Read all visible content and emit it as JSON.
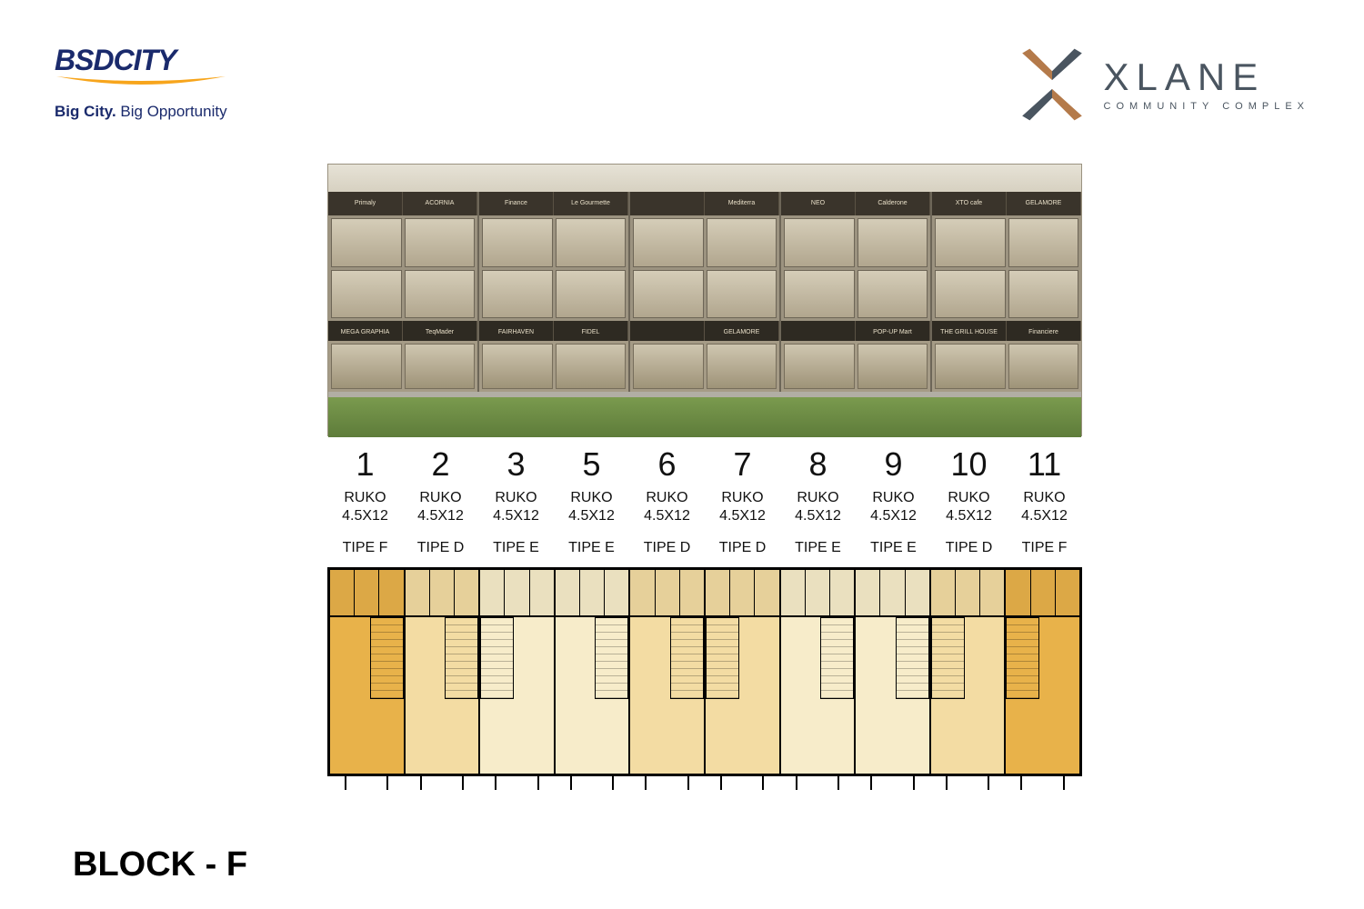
{
  "logo_left": {
    "brand_a": "BSD",
    "brand_b": "CITY",
    "tag_bold": "Big City.",
    "tag_rest": " Big Opportunity",
    "swoosh_color": "#f7a51c",
    "text_color": "#1a2a6c"
  },
  "logo_right": {
    "title": "XLANE",
    "subtitle": "COMMUNITY COMPLEX",
    "x_color_a": "#b47a4a",
    "x_color_b": "#4a5560"
  },
  "render": {
    "blocks": [
      {
        "upper": [
          "Primaly",
          "ACORNIA"
        ],
        "lower": [
          "MEGA GRAPHIA",
          "TeqMader"
        ]
      },
      {
        "upper": [
          "Finance",
          "Le Gourmette"
        ],
        "lower": [
          "FAIRHAVEN",
          "FIDEL"
        ]
      },
      {
        "upper": [
          "",
          "Mediterra"
        ],
        "lower": [
          "",
          "GELAMORE"
        ]
      },
      {
        "upper": [
          "NEO",
          "Calderone"
        ],
        "lower": [
          "",
          "POP-UP Mart"
        ]
      },
      {
        "upper": [
          "XTO cafe",
          "GELAMORE"
        ],
        "lower": [
          "THE GRILL HOUSE",
          "Financiere"
        ]
      }
    ]
  },
  "units": [
    {
      "num": "1",
      "label": "RUKO",
      "size": "4.5X12",
      "tipe": "TIPE F",
      "shade": "dark",
      "stairs": "right"
    },
    {
      "num": "2",
      "label": "RUKO",
      "size": "4.5X12",
      "tipe": "TIPE D",
      "shade": "mid",
      "stairs": "right"
    },
    {
      "num": "3",
      "label": "RUKO",
      "size": "4.5X12",
      "tipe": "TIPE E",
      "shade": "light",
      "stairs": "left"
    },
    {
      "num": "5",
      "label": "RUKO",
      "size": "4.5X12",
      "tipe": "TIPE E",
      "shade": "light",
      "stairs": "right"
    },
    {
      "num": "6",
      "label": "RUKO",
      "size": "4.5X12",
      "tipe": "TIPE D",
      "shade": "mid",
      "stairs": "right"
    },
    {
      "num": "7",
      "label": "RUKO",
      "size": "4.5X12",
      "tipe": "TIPE D",
      "shade": "mid",
      "stairs": "left"
    },
    {
      "num": "8",
      "label": "RUKO",
      "size": "4.5X12",
      "tipe": "TIPE E",
      "shade": "light",
      "stairs": "right"
    },
    {
      "num": "9",
      "label": "RUKO",
      "size": "4.5X12",
      "tipe": "TIPE E",
      "shade": "light",
      "stairs": "right"
    },
    {
      "num": "10",
      "label": "RUKO",
      "size": "4.5X12",
      "tipe": "TIPE D",
      "shade": "mid",
      "stairs": "left"
    },
    {
      "num": "11",
      "label": "RUKO",
      "size": "4.5X12",
      "tipe": "TIPE F",
      "shade": "dark",
      "stairs": "left"
    }
  ],
  "plan_colors": {
    "dark": "#e8b24a",
    "mid": "#f3dca3",
    "light": "#f7ecca"
  },
  "block_title": "BLOCK - F"
}
